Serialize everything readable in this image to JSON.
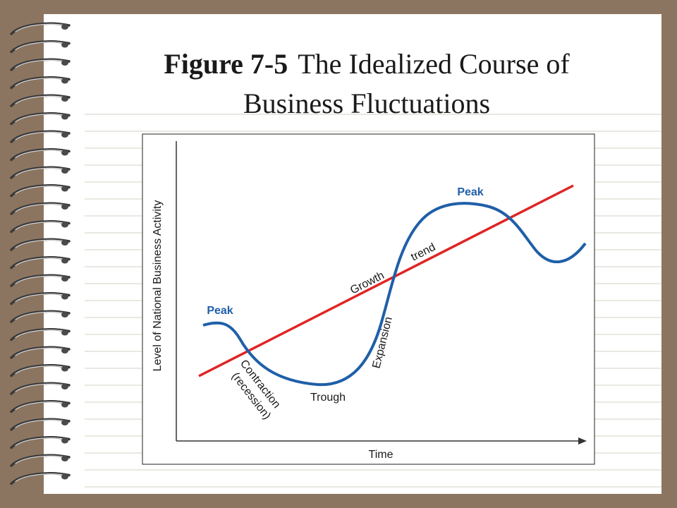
{
  "title": {
    "bold": "Figure 7-5",
    "line1": "The Idealized Course of",
    "line2": "Business Fluctuations"
  },
  "figure": {
    "y_axis_label": "Level of National Business Activity",
    "x_axis_label": "Time",
    "labels": {
      "peak_left": "Peak",
      "peak_right": "Peak",
      "contraction": "Contraction",
      "recession": "(recession)",
      "trough": "Trough",
      "expansion": "Expansion",
      "growth": "Growth",
      "trend": "trend"
    }
  }
}
